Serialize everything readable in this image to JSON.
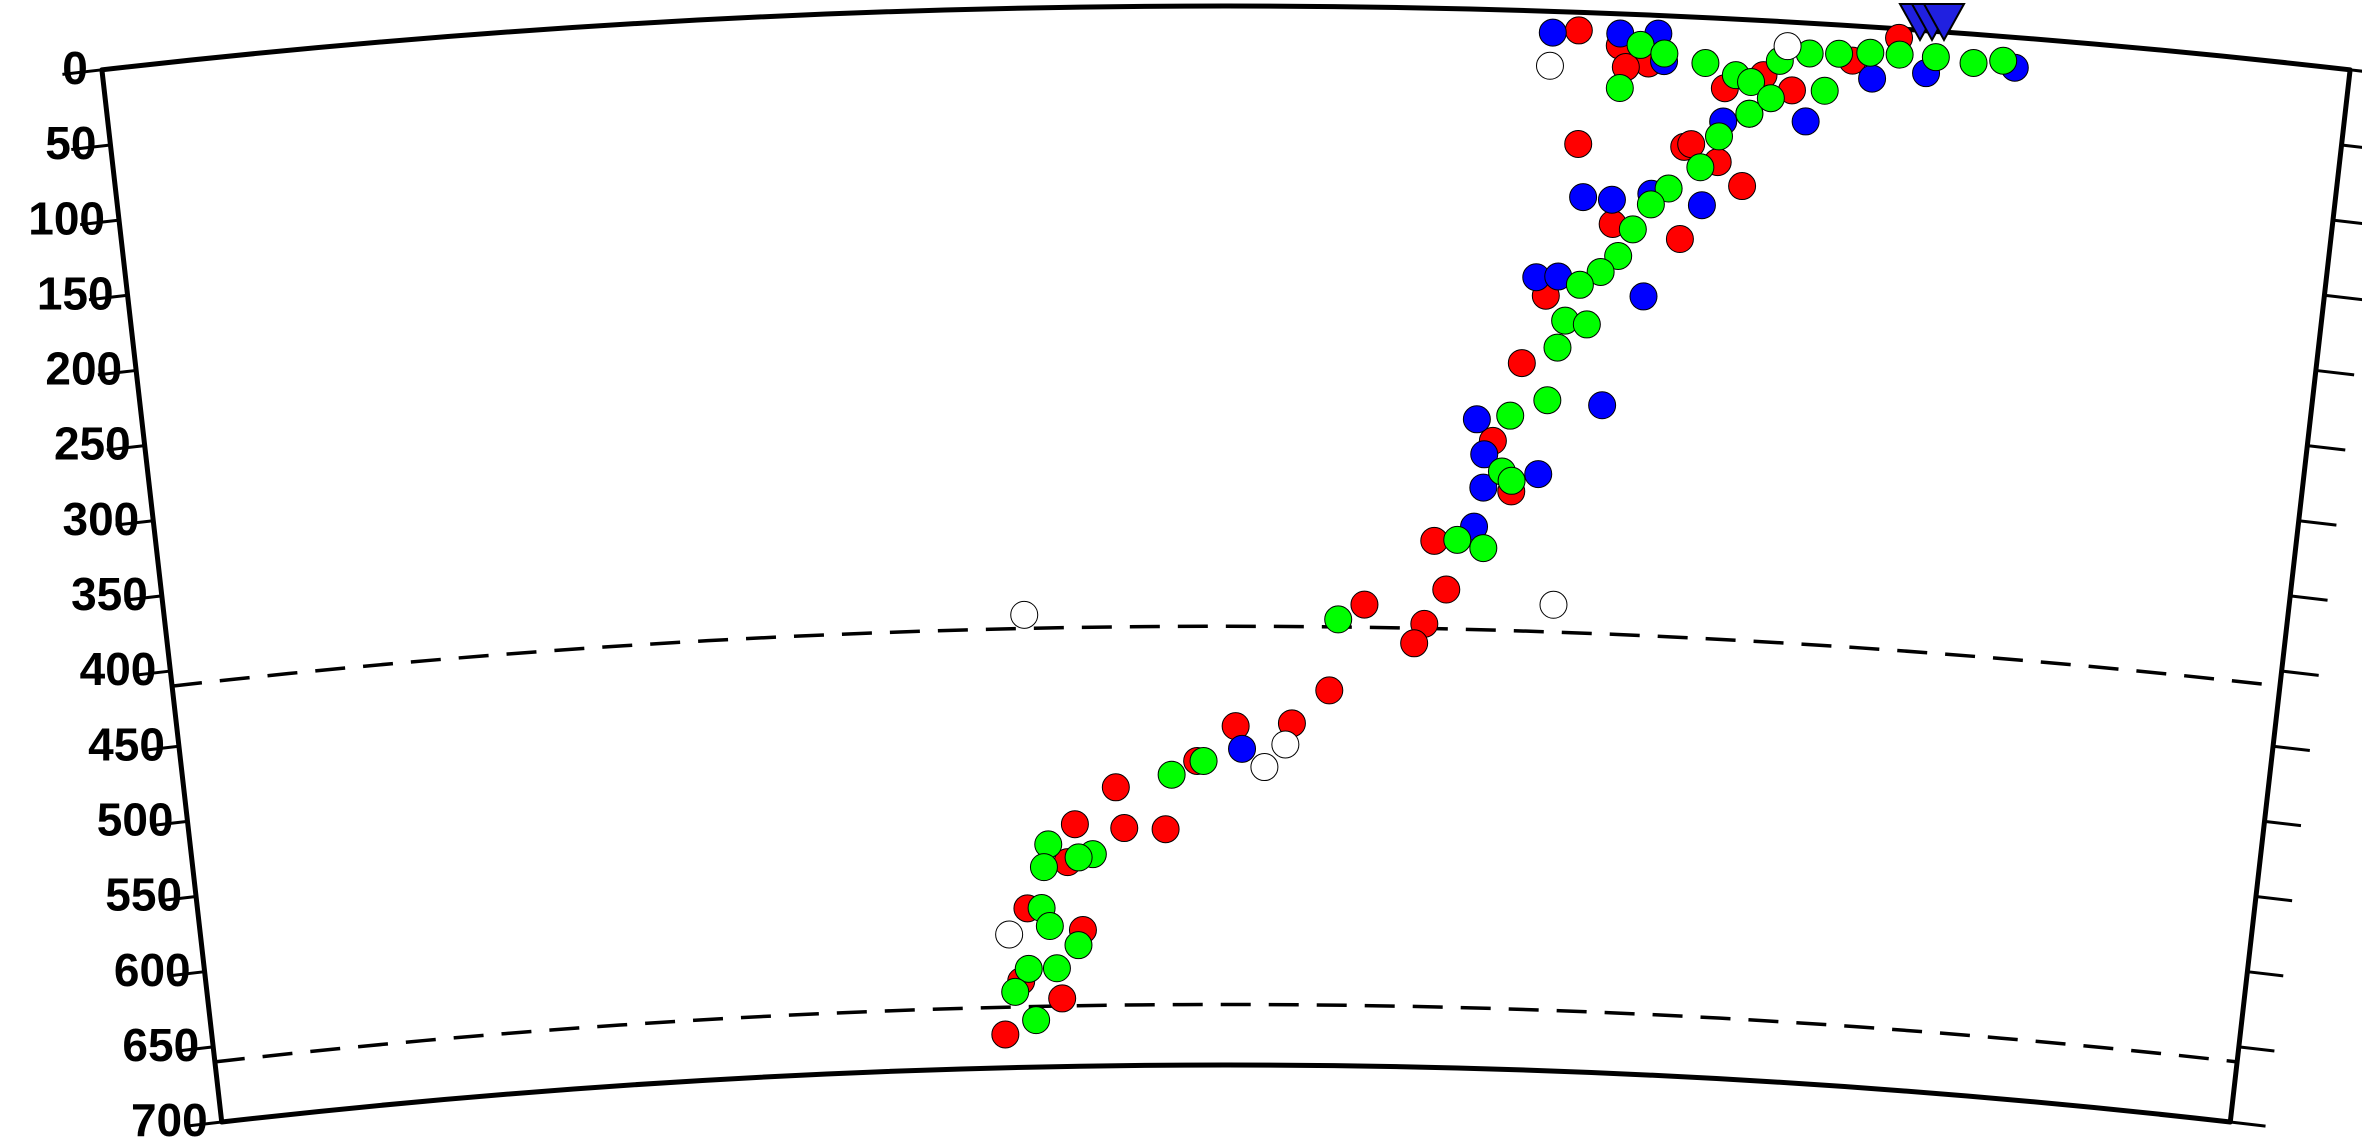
{
  "chart_data": {
    "type": "scatter",
    "xlim": [
      0,
      13
    ],
    "ylim": [
      0,
      700
    ],
    "yticks": [
      0,
      50,
      100,
      150,
      200,
      250,
      300,
      350,
      400,
      450,
      500,
      550,
      600,
      650,
      700
    ],
    "dashed_depths": [
      410,
      660
    ],
    "series": [
      {
        "color": "#ff0000",
        "x": [
          8.54,
          8.78,
          8.56,
          8.95,
          9.18,
          9.53,
          9.55,
          9.4,
          9.38,
          9.18,
          8.78,
          8.4,
          8.27,
          8.11,
          7.77,
          7.35,
          7.72,
          7.66,
          7.14,
          6.91,
          6.56,
          6.32,
          6.12,
          5.86,
          5.81,
          5.55,
          5.5,
          5.59,
          5.45,
          5.08,
          5.19,
          5.24,
          9.79,
          10.13,
          10.39,
          9.62,
          8.82,
          9.22,
          8.23,
          7.85
        ],
        "values": [
          12,
          21,
          87,
          32,
          86,
          110,
          62,
          46,
          95,
          147,
          139,
          188,
          233,
          285,
          352,
          395,
          407,
          420,
          452,
          474,
          476,
          499,
          544,
          543,
          516,
          540,
          565,
          610,
          655,
          678,
          643,
          595,
          45,
          23,
          6,
          36,
          35,
          84,
          318,
          384
        ]
      },
      {
        "color": "#0000ff",
        "x": [
          8.39,
          8.78,
          9.0,
          9.04,
          9.4,
          8.6,
          8.77,
          9.0,
          9.3,
          8.34,
          8.47,
          8.98,
          8.76,
          8.01,
          8.06,
          8.06,
          8.01,
          8.39,
          6.6,
          10.56,
          11.07,
          9.88,
          10.25
        ],
        "values": [
          14,
          13,
          12,
          30,
          68,
          122,
          123,
          118,
          124,
          176,
          175,
          186,
          259,
          271,
          294,
          316,
          342,
          306,
          491,
          28,
          20,
          65,
          34
        ]
      },
      {
        "color": "#00ff00",
        "x": [
          8.9,
          9.04,
          8.79,
          9.28,
          9.55,
          9.38,
          9.28,
          9.1,
          9.0,
          8.9,
          8.82,
          8.72,
          8.6,
          8.52,
          8.48,
          8.65,
          8.43,
          8.21,
          8.17,
          8.23,
          7.91,
          8.07,
          7.19,
          6.36,
          6.16,
          5.66,
          5.57,
          5.38,
          5.35,
          5.33,
          5.38,
          5.56,
          5.42,
          5.24,
          5.15,
          5.28,
          9.71,
          9.88,
          10.05,
          10.23,
          10.4,
          10.61,
          10.83,
          11.0,
          9.46,
          9.55,
          9.67,
          9.98
        ],
        "values": [
          20,
          25,
          49,
          30,
          62,
          78,
          99,
          114,
          125,
          142,
          160,
          171,
          180,
          204,
          222,
          206,
          257,
          268,
          305,
          311,
          351,
          356,
          405,
          499,
          508,
          560,
          562,
          553,
          568,
          595,
          607,
          620,
          635,
          635,
          650,
          669,
          26,
          20,
          19,
          17,
          17,
          17,
          19,
          16,
          37,
          41,
          51,
          44
        ]
      },
      {
        "color": "#ffffff",
        "x": [
          8.38,
          9.75,
          5.26,
          8.51,
          6.87,
          6.74,
          5.12
        ],
        "values": [
          36,
          16,
          401,
          392,
          488,
          503,
          612
        ]
      }
    ]
  }
}
